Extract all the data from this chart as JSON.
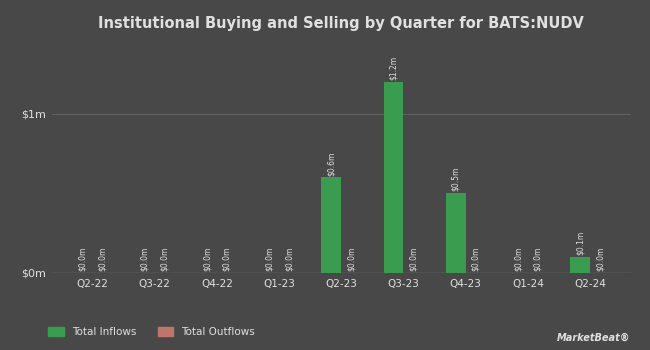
{
  "title": "Institutional Buying and Selling by Quarter for BATS:NUDV",
  "quarters": [
    "Q2-22",
    "Q3-22",
    "Q4-22",
    "Q1-23",
    "Q2-23",
    "Q3-23",
    "Q4-23",
    "Q1-24",
    "Q2-24"
  ],
  "inflows": [
    0.0,
    0.0,
    0.0,
    0.0,
    0.6,
    1.2,
    0.5,
    0.0,
    0.1
  ],
  "outflows": [
    0.0,
    0.0,
    0.0,
    0.0,
    0.0,
    0.0,
    0.0,
    0.0,
    0.0
  ],
  "inflow_labels": [
    "$0.0m",
    "$0.0m",
    "$0.0m",
    "$0.0m",
    "$0.6m",
    "$1.2m",
    "$0.5m",
    "$0.0m",
    "$0.1m"
  ],
  "outflow_labels": [
    "$0.0m",
    "$0.0m",
    "$0.0m",
    "$0.0m",
    "$0.0m",
    "$0.0m",
    "$0.0m",
    "$0.0m",
    "$0.0m"
  ],
  "inflow_color": "#3a9c4e",
  "outflow_color": "#c0756a",
  "background_color": "#484848",
  "text_color": "#e0e0e0",
  "grid_color": "#606060",
  "ylim": [
    0,
    1.45
  ],
  "yticks": [
    0,
    1.0
  ],
  "ytick_labels": [
    "$0m",
    "$1m"
  ],
  "bar_width": 0.32,
  "legend_inflow": "Total Inflows",
  "legend_outflow": "Total Outflows"
}
